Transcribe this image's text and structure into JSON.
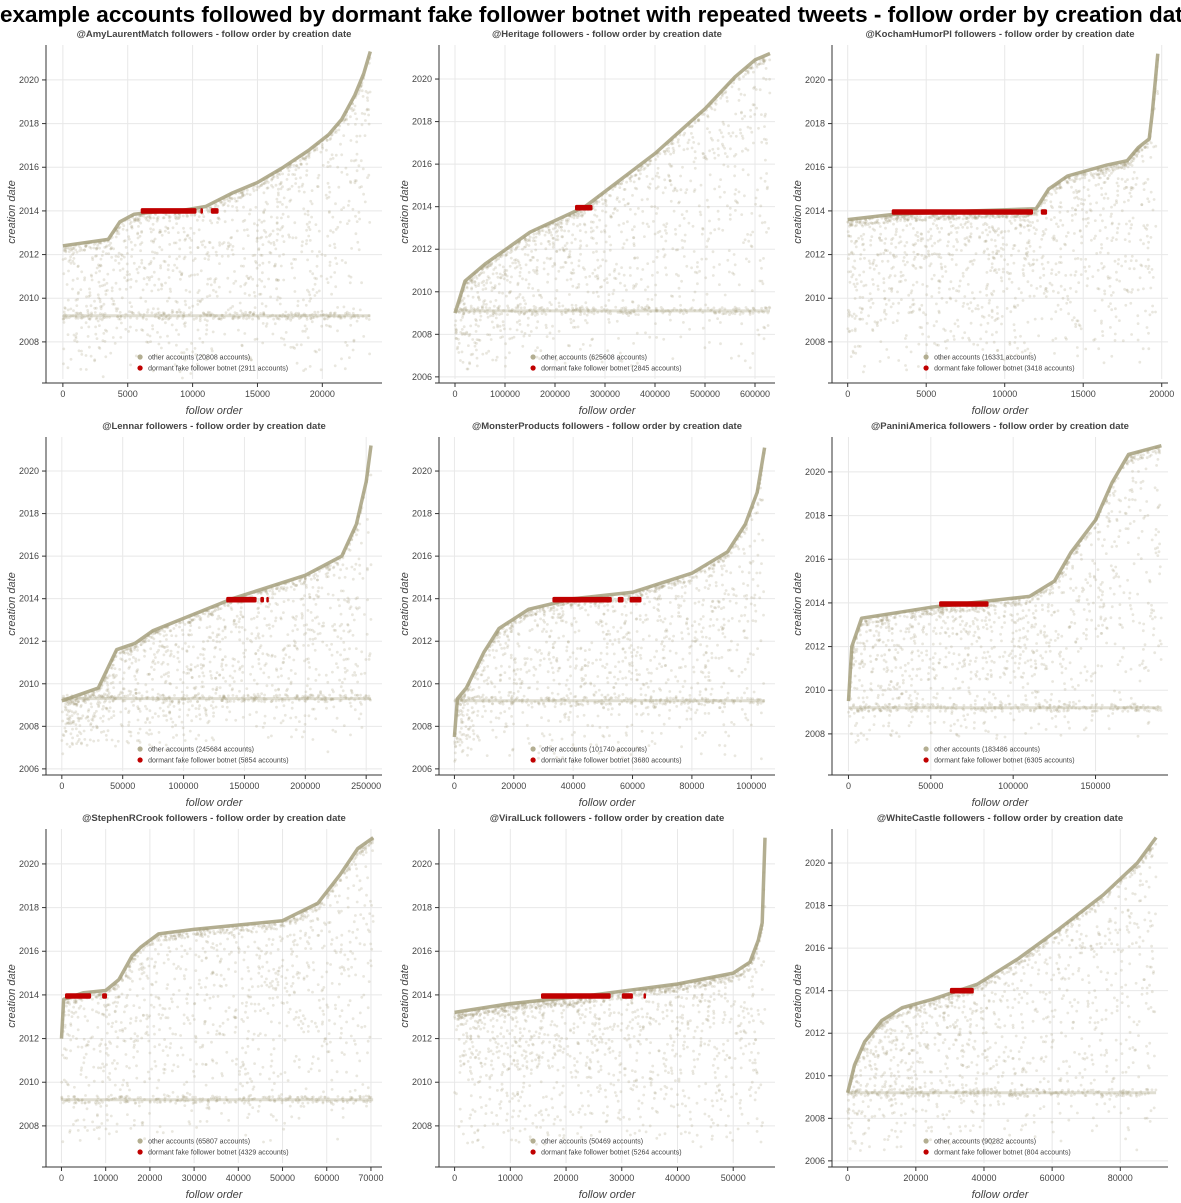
{
  "title": "example accounts followed by dormant fake follower botnet with repeated tweets - follow order by creation date",
  "colors": {
    "other": "#a6a07e",
    "botnet": "#c00000",
    "grid": "#e8e8e8",
    "axis": "#333333"
  },
  "chart_data": [
    {
      "type": "scatter",
      "title": "@AmyLaurentMatch followers - follow order by creation date",
      "xlabel": "follow order",
      "ylabel": "creation date",
      "xlim": [
        -1300,
        24600
      ],
      "ylim": [
        2006.3,
        2021.6
      ],
      "xticks": [
        0,
        5000,
        10000,
        15000,
        20000
      ],
      "yticks": [
        2008,
        2010,
        2012,
        2014,
        2016,
        2018,
        2020
      ],
      "grid": true,
      "legend_position": "bottom-center",
      "series": [
        {
          "name": "other accounts (20808 accounts)",
          "frontier": [
            [
              0,
              2012.4
            ],
            [
              3500,
              2012.7
            ],
            [
              4400,
              2013.5
            ],
            [
              5500,
              2013.85
            ],
            [
              7000,
              2013.95
            ],
            [
              9000,
              2014.0
            ],
            [
              11000,
              2014.2
            ],
            [
              13000,
              2014.8
            ],
            [
              15000,
              2015.3
            ],
            [
              17000,
              2016.0
            ],
            [
              19000,
              2016.8
            ],
            [
              20500,
              2017.5
            ],
            [
              21500,
              2018.2
            ],
            [
              22500,
              2019.3
            ],
            [
              23200,
              2020.3
            ],
            [
              23700,
              2021.3
            ]
          ],
          "floor": 2006.3,
          "band": 2009.2
        },
        {
          "name": "dormant fake follower botnet (2911 accounts)",
          "x_range": [
            6000,
            12000
          ],
          "y": 2014.0,
          "segments": [
            [
              6000,
              10300
            ],
            [
              10600,
              10800
            ],
            [
              11400,
              12000
            ]
          ]
        }
      ]
    },
    {
      "type": "scatter",
      "title": "@Heritage followers - follow order by creation date",
      "xlabel": "follow order",
      "ylabel": "creation date",
      "xlim": [
        -32000,
        640000
      ],
      "ylim": [
        2005.9,
        2021.6
      ],
      "xticks": [
        0,
        100000,
        200000,
        300000,
        400000,
        500000,
        600000
      ],
      "yticks": [
        2006,
        2008,
        2010,
        2012,
        2014,
        2016,
        2018,
        2020
      ],
      "grid": true,
      "legend_position": "bottom-center",
      "series": [
        {
          "name": "other accounts (625608 accounts)",
          "frontier": [
            [
              0,
              2009.0
            ],
            [
              20000,
              2010.5
            ],
            [
              60000,
              2011.3
            ],
            [
              150000,
              2012.8
            ],
            [
              260000,
              2014.0
            ],
            [
              400000,
              2016.5
            ],
            [
              500000,
              2018.6
            ],
            [
              560000,
              2020.1
            ],
            [
              600000,
              2020.9
            ],
            [
              630000,
              2021.2
            ]
          ],
          "floor": 2006.2,
          "band": 2009.1
        },
        {
          "name": "dormant fake follower botnet (2845 accounts)",
          "x_range": [
            240000,
            275000
          ],
          "y": 2013.95,
          "segments": [
            [
              240000,
              275000
            ]
          ]
        }
      ]
    },
    {
      "type": "scatter",
      "title": "@KochamHumorPl followers - follow order by creation date",
      "xlabel": "follow order",
      "ylabel": "creation date",
      "xlim": [
        -1000,
        20400
      ],
      "ylim": [
        2006.3,
        2021.6
      ],
      "xticks": [
        0,
        5000,
        10000,
        15000,
        20000
      ],
      "yticks": [
        2008,
        2010,
        2012,
        2014,
        2016,
        2018,
        2020
      ],
      "grid": true,
      "legend_position": "bottom-center",
      "series": [
        {
          "name": "other accounts (16331 accounts)",
          "frontier": [
            [
              0,
              2013.6
            ],
            [
              3000,
              2013.85
            ],
            [
              8000,
              2014.0
            ],
            [
              12000,
              2014.1
            ],
            [
              12800,
              2015.0
            ],
            [
              14000,
              2015.6
            ],
            [
              16500,
              2016.1
            ],
            [
              17800,
              2016.3
            ],
            [
              18500,
              2016.9
            ],
            [
              19200,
              2017.3
            ],
            [
              19400,
              2018.5
            ],
            [
              19600,
              2020.0
            ],
            [
              19750,
              2021.2
            ]
          ],
          "floor": 2006.6,
          "band": null
        },
        {
          "name": "dormant fake follower botnet (3418 accounts)",
          "x_range": [
            2800,
            12700
          ],
          "y": 2013.95,
          "segments": [
            [
              2800,
              11800
            ],
            [
              12300,
              12700
            ]
          ]
        }
      ]
    },
    {
      "type": "scatter",
      "title": "@Lennar followers - follow order by creation date",
      "xlabel": "follow order",
      "ylabel": "creation date",
      "xlim": [
        -13000,
        263000
      ],
      "ylim": [
        2005.9,
        2021.6
      ],
      "xticks": [
        0,
        50000,
        100000,
        150000,
        200000,
        250000
      ],
      "yticks": [
        2006,
        2008,
        2010,
        2012,
        2014,
        2016,
        2018,
        2020
      ],
      "grid": true,
      "legend_position": "bottom-center",
      "series": [
        {
          "name": "other accounts (245684 accounts)",
          "frontier": [
            [
              0,
              2009.2
            ],
            [
              30000,
              2009.8
            ],
            [
              45000,
              2011.6
            ],
            [
              60000,
              2011.9
            ],
            [
              75000,
              2012.5
            ],
            [
              140000,
              2014.0
            ],
            [
              200000,
              2015.1
            ],
            [
              230000,
              2016.0
            ],
            [
              242000,
              2017.5
            ],
            [
              250000,
              2019.5
            ],
            [
              254000,
              2021.2
            ]
          ],
          "floor": 2006.6,
          "band": 2009.3
        },
        {
          "name": "dormant fake follower botnet (5854 accounts)",
          "x_range": [
            135000,
            170000
          ],
          "y": 2013.95,
          "segments": [
            [
              135000,
              160000
            ],
            [
              163000,
              166000
            ],
            [
              168000,
              170000
            ]
          ]
        }
      ]
    },
    {
      "type": "scatter",
      "title": "@MonsterProducts followers - follow order by creation date",
      "xlabel": "follow order",
      "ylabel": "creation date",
      "xlim": [
        -5200,
        108000
      ],
      "ylim": [
        2005.9,
        2021.6
      ],
      "xticks": [
        0,
        20000,
        40000,
        60000,
        80000,
        100000
      ],
      "yticks": [
        2006,
        2008,
        2010,
        2012,
        2014,
        2016,
        2018,
        2020
      ],
      "grid": true,
      "legend_position": "bottom-center",
      "series": [
        {
          "name": "other accounts (101740 accounts)",
          "frontier": [
            [
              0,
              2007.5
            ],
            [
              1000,
              2009.3
            ],
            [
              4000,
              2009.8
            ],
            [
              10000,
              2011.5
            ],
            [
              15000,
              2012.6
            ],
            [
              25000,
              2013.5
            ],
            [
              40000,
              2014.0
            ],
            [
              60000,
              2014.3
            ],
            [
              80000,
              2015.2
            ],
            [
              92000,
              2016.2
            ],
            [
              98000,
              2017.5
            ],
            [
              102000,
              2019.0
            ],
            [
              104500,
              2021.1
            ]
          ],
          "floor": 2006.3,
          "band": 2009.2
        },
        {
          "name": "dormant fake follower botnet (3680 accounts)",
          "x_range": [
            33000,
            63000
          ],
          "y": 2013.95,
          "segments": [
            [
              33000,
              53000
            ],
            [
              55000,
              57000
            ],
            [
              59000,
              63000
            ]
          ]
        }
      ]
    },
    {
      "type": "scatter",
      "title": "@PaniniAmerica followers - follow order by creation date",
      "xlabel": "follow order",
      "ylabel": "creation date",
      "xlim": [
        -10000,
        194000
      ],
      "ylim": [
        2006.3,
        2021.6
      ],
      "xticks": [
        0,
        50000,
        100000,
        150000
      ],
      "yticks": [
        2008,
        2010,
        2012,
        2014,
        2016,
        2018,
        2020
      ],
      "grid": true,
      "legend_position": "bottom-center",
      "series": [
        {
          "name": "other accounts (183486 accounts)",
          "frontier": [
            [
              0,
              2009.5
            ],
            [
              2000,
              2012.0
            ],
            [
              8000,
              2013.3
            ],
            [
              25000,
              2013.5
            ],
            [
              50000,
              2013.8
            ],
            [
              110000,
              2014.3
            ],
            [
              125000,
              2015.0
            ],
            [
              135000,
              2016.3
            ],
            [
              150000,
              2017.8
            ],
            [
              160000,
              2019.5
            ],
            [
              170000,
              2020.8
            ],
            [
              190000,
              2021.2
            ]
          ],
          "floor": 2007.5,
          "band": 2009.2
        },
        {
          "name": "dormant fake follower botnet (6305 accounts)",
          "x_range": [
            55000,
            85000
          ],
          "y": 2013.95,
          "segments": [
            [
              55000,
              85000
            ]
          ]
        }
      ]
    },
    {
      "type": "scatter",
      "title": "@StephenRCrook followers - follow order by creation date",
      "xlabel": "follow order",
      "ylabel": "creation date",
      "xlim": [
        -3500,
        72500
      ],
      "ylim": [
        2006.3,
        2021.6
      ],
      "xticks": [
        0,
        10000,
        20000,
        30000,
        40000,
        50000,
        60000,
        70000
      ],
      "yticks": [
        2008,
        2010,
        2012,
        2014,
        2016,
        2018,
        2020
      ],
      "grid": true,
      "legend_position": "bottom-center",
      "series": [
        {
          "name": "other accounts (65807 accounts)",
          "frontier": [
            [
              0,
              2012.0
            ],
            [
              500,
              2013.8
            ],
            [
              5000,
              2014.1
            ],
            [
              10000,
              2014.2
            ],
            [
              13000,
              2014.7
            ],
            [
              16000,
              2015.8
            ],
            [
              18000,
              2016.2
            ],
            [
              22000,
              2016.8
            ],
            [
              30000,
              2017.0
            ],
            [
              50000,
              2017.4
            ],
            [
              58000,
              2018.2
            ],
            [
              63000,
              2019.5
            ],
            [
              67000,
              2020.7
            ],
            [
              70500,
              2021.2
            ]
          ],
          "floor": 2007.2,
          "band": 2009.2
        },
        {
          "name": "dormant fake follower botnet (4329 accounts)",
          "x_range": [
            800,
            10300
          ],
          "y": 2013.95,
          "segments": [
            [
              800,
              6700
            ],
            [
              9200,
              10300
            ]
          ]
        }
      ]
    },
    {
      "type": "scatter",
      "title": "@ViralLuck followers - follow order by creation date",
      "xlabel": "follow order",
      "ylabel": "creation date",
      "xlim": [
        -2800,
        57500
      ],
      "ylim": [
        2006.3,
        2021.6
      ],
      "xticks": [
        0,
        10000,
        20000,
        30000,
        40000,
        50000
      ],
      "yticks": [
        2008,
        2010,
        2012,
        2014,
        2016,
        2018,
        2020
      ],
      "grid": true,
      "legend_position": "bottom-center",
      "series": [
        {
          "name": "other accounts (50469 accounts)",
          "frontier": [
            [
              0,
              2013.2
            ],
            [
              10000,
              2013.6
            ],
            [
              25000,
              2014.0
            ],
            [
              40000,
              2014.5
            ],
            [
              50000,
              2015.0
            ],
            [
              53000,
              2015.5
            ],
            [
              54500,
              2016.5
            ],
            [
              55200,
              2017.3
            ],
            [
              55700,
              2021.2
            ]
          ],
          "floor": 2006.8,
          "band": null
        },
        {
          "name": "dormant fake follower botnet (5264 accounts)",
          "x_range": [
            15500,
            34200
          ],
          "y": 2013.95,
          "segments": [
            [
              15500,
              28000
            ],
            [
              30000,
              32000
            ],
            [
              33900,
              34200
            ]
          ]
        }
      ]
    },
    {
      "type": "scatter",
      "title": "@WhiteCastle followers - follow order by creation date",
      "xlabel": "follow order",
      "ylabel": "creation date",
      "xlim": [
        -4600,
        94000
      ],
      "ylim": [
        2005.9,
        2021.6
      ],
      "xticks": [
        0,
        20000,
        40000,
        60000,
        80000
      ],
      "yticks": [
        2006,
        2008,
        2010,
        2012,
        2014,
        2016,
        2018,
        2020
      ],
      "grid": true,
      "legend_position": "bottom-center",
      "series": [
        {
          "name": "other accounts (90282 accounts)",
          "frontier": [
            [
              0,
              2009.2
            ],
            [
              2000,
              2010.5
            ],
            [
              5000,
              2011.6
            ],
            [
              10000,
              2012.6
            ],
            [
              16000,
              2013.2
            ],
            [
              25000,
              2013.6
            ],
            [
              38000,
              2014.3
            ],
            [
              50000,
              2015.5
            ],
            [
              62000,
              2016.9
            ],
            [
              75000,
              2018.5
            ],
            [
              85000,
              2020.0
            ],
            [
              90500,
              2021.2
            ]
          ],
          "floor": 2006.3,
          "band": 2009.2
        },
        {
          "name": "dormant fake follower botnet (804 accounts)",
          "x_range": [
            30000,
            37000
          ],
          "y": 2014.0,
          "segments": [
            [
              30000,
              37000
            ]
          ]
        }
      ]
    }
  ]
}
